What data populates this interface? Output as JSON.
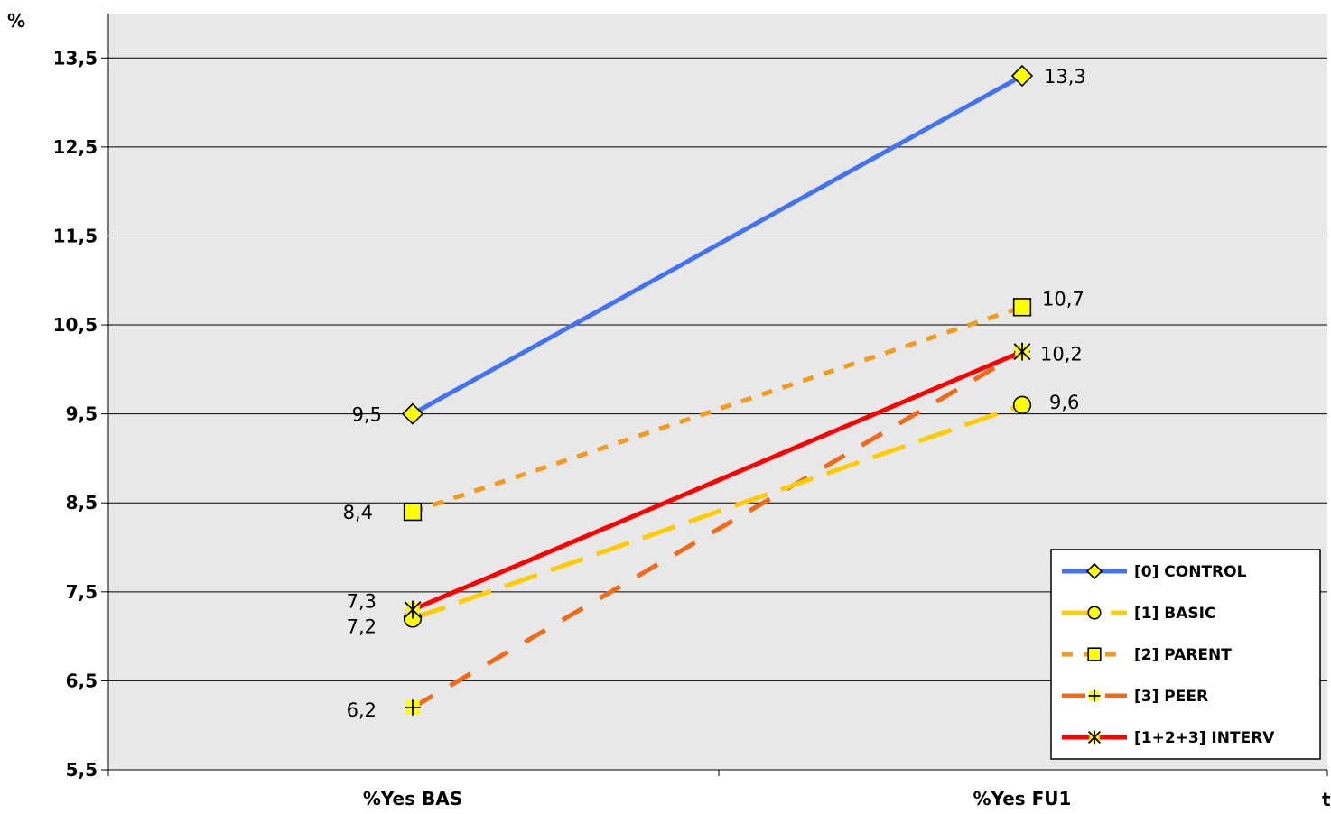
{
  "chart_data": {
    "type": "line",
    "ylabel": "%",
    "xlabel": "t",
    "categories": [
      "%Yes BAS",
      "%Yes FU1"
    ],
    "ylim": [
      5.5,
      14
    ],
    "yticks": [
      5.5,
      6.5,
      7.5,
      8.5,
      9.5,
      10.5,
      11.5,
      12.5,
      13.5
    ],
    "ytick_labels": [
      "5,5",
      "6,5",
      "7,5",
      "8,5",
      "9,5",
      "10,5",
      "11,5",
      "12,5",
      "13,5"
    ],
    "grid": true,
    "legend_position": "bottom-right",
    "series": [
      {
        "name": "[0] CONTROL",
        "values": [
          9.5,
          13.3
        ],
        "labels": [
          "9,5",
          "13,3"
        ],
        "color": "#4472F4",
        "dash": "solid",
        "marker": "diamond"
      },
      {
        "name": "[1] BASIC",
        "values": [
          7.2,
          9.6
        ],
        "labels": [
          "7,2",
          "9,6"
        ],
        "color": "#FFCC00",
        "dash": "long-dash",
        "marker": "circle"
      },
      {
        "name": "[2] PARENT",
        "values": [
          8.4,
          10.7
        ],
        "labels": [
          "8,4",
          "10,7"
        ],
        "color": "#F49A1C",
        "dash": "short-dash",
        "marker": "square"
      },
      {
        "name": "[3] PEER",
        "values": [
          6.2,
          10.2
        ],
        "labels": [
          "6,2",
          ""
        ],
        "color": "#F06A1A",
        "dash": "dash",
        "marker": "plus"
      },
      {
        "name": "[1+2+3] INTERV",
        "values": [
          7.3,
          10.2
        ],
        "labels": [
          "7,3",
          "10,2"
        ],
        "color": "#FF0000",
        "dash": "solid",
        "marker": "star"
      }
    ]
  }
}
